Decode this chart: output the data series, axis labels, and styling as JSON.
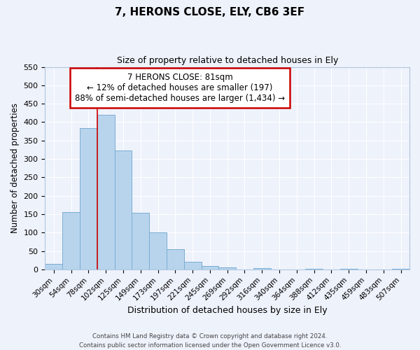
{
  "title": "7, HERONS CLOSE, ELY, CB6 3EF",
  "subtitle": "Size of property relative to detached houses in Ely",
  "xlabel": "Distribution of detached houses by size in Ely",
  "ylabel": "Number of detached properties",
  "bin_labels": [
    "30sqm",
    "54sqm",
    "78sqm",
    "102sqm",
    "125sqm",
    "149sqm",
    "173sqm",
    "197sqm",
    "221sqm",
    "245sqm",
    "269sqm",
    "292sqm",
    "316sqm",
    "340sqm",
    "364sqm",
    "388sqm",
    "412sqm",
    "435sqm",
    "459sqm",
    "483sqm",
    "507sqm"
  ],
  "bar_values": [
    15,
    155,
    383,
    420,
    322,
    153,
    100,
    55,
    20,
    10,
    5,
    0,
    3,
    0,
    0,
    2,
    0,
    2,
    0,
    0,
    2
  ],
  "bar_color": "#b8d4ec",
  "bar_edge_color": "#7aadd4",
  "ylim": [
    0,
    550
  ],
  "yticks": [
    0,
    50,
    100,
    150,
    200,
    250,
    300,
    350,
    400,
    450,
    500,
    550
  ],
  "vline_x_idx": 2.5,
  "vline_color": "#cc0000",
  "annotation_title": "7 HERONS CLOSE: 81sqm",
  "annotation_line1": "← 12% of detached houses are smaller (197)",
  "annotation_line2": "88% of semi-detached houses are larger (1,434) →",
  "annotation_box_color": "#cc0000",
  "footer_line1": "Contains HM Land Registry data © Crown copyright and database right 2024.",
  "footer_line2": "Contains public sector information licensed under the Open Government Licence v3.0.",
  "background_color": "#eef2fb",
  "grid_color": "#ffffff"
}
